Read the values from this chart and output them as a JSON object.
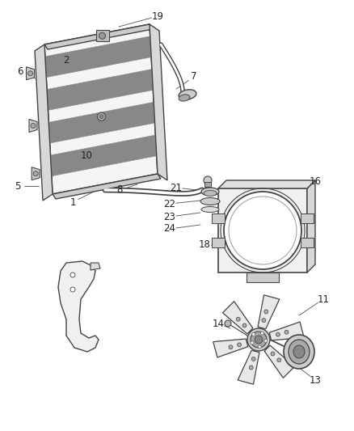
{
  "bg_color": "#ffffff",
  "line_color": "#444444",
  "dark_color": "#222222",
  "gray1": "#888888",
  "gray2": "#aaaaaa",
  "gray3": "#cccccc",
  "figsize": [
    4.38,
    5.33
  ],
  "dpi": 100
}
